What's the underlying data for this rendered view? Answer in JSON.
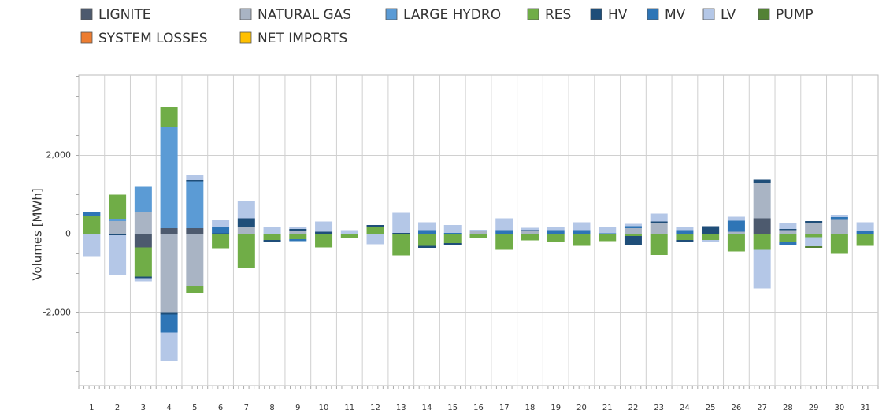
{
  "chart_data": {
    "type": "stacked_bar",
    "y_label": "Volumes [MWh]",
    "categories": [
      "1",
      "2",
      "3",
      "4",
      "5",
      "6",
      "7",
      "8",
      "9",
      "10",
      "11",
      "12",
      "13",
      "14",
      "15",
      "16",
      "17",
      "18",
      "19",
      "20",
      "21",
      "22",
      "23",
      "24",
      "25",
      "26",
      "27",
      "28",
      "29",
      "30",
      "31"
    ],
    "ylim": [
      -3850,
      4050
    ],
    "yticks": [
      {
        "value": -2000,
        "label": "-2,000"
      },
      0,
      {
        "value": 2000,
        "label": "2,000"
      }
    ],
    "grid": true,
    "legend": "top",
    "series": [
      {
        "name": "LIGNITE",
        "color": "#4d5a6e",
        "values": [
          0,
          0,
          -340,
          150,
          150,
          0,
          0,
          0,
          0,
          0,
          0,
          0,
          0,
          0,
          0,
          0,
          0,
          0,
          0,
          0,
          0,
          0,
          0,
          0,
          0,
          0,
          400,
          0,
          0,
          0,
          0
        ]
      },
      {
        "name": "NATURAL GAS",
        "color": "#a9b4c4",
        "values": [
          0,
          330,
          570,
          -2000,
          -1320,
          0,
          170,
          0,
          80,
          0,
          0,
          0,
          0,
          0,
          0,
          70,
          0,
          80,
          0,
          0,
          0,
          150,
          280,
          0,
          0,
          60,
          900,
          100,
          290,
          380,
          0
        ]
      },
      {
        "name": "LARGE HYDRO",
        "color": "#5b9bd5",
        "values": [
          0,
          60,
          630,
          2580,
          1190,
          0,
          0,
          0,
          0,
          0,
          0,
          0,
          0,
          0,
          0,
          0,
          0,
          0,
          0,
          0,
          0,
          0,
          0,
          0,
          0,
          0,
          0,
          0,
          0,
          0,
          0
        ]
      },
      {
        "name": "RES",
        "color": "#70ad47",
        "values": [
          470,
          610,
          -740,
          500,
          -180,
          -360,
          -850,
          -150,
          -130,
          -340,
          -90,
          190,
          -540,
          -300,
          -230,
          -100,
          -400,
          -160,
          -200,
          -300,
          -180,
          -50,
          -530,
          -150,
          -150,
          -440,
          -400,
          -200,
          -80,
          -500,
          -300
        ]
      },
      {
        "name": "HV",
        "color": "#1f4e79",
        "values": [
          0,
          -30,
          -40,
          -40,
          30,
          20,
          230,
          -50,
          50,
          60,
          0,
          40,
          30,
          -50,
          -40,
          0,
          0,
          20,
          0,
          0,
          0,
          -220,
          40,
          -50,
          200,
          0,
          80,
          30,
          40,
          0,
          0
        ]
      },
      {
        "name": "MV",
        "color": "#2e75b6",
        "values": [
          80,
          0,
          0,
          -460,
          0,
          160,
          0,
          0,
          -50,
          0,
          0,
          0,
          0,
          100,
          30,
          0,
          100,
          0,
          100,
          100,
          20,
          50,
          0,
          100,
          0,
          280,
          0,
          -80,
          0,
          50,
          80
        ]
      },
      {
        "name": "LV",
        "color": "#b4c7e7",
        "values": [
          -580,
          -1000,
          -80,
          -730,
          140,
          170,
          430,
          180,
          50,
          260,
          100,
          -260,
          510,
          200,
          200,
          40,
          300,
          60,
          80,
          200,
          150,
          60,
          200,
          80,
          -50,
          100,
          -980,
          150,
          -230,
          60,
          220
        ]
      },
      {
        "name": "PUMP",
        "color": "#548235",
        "values": [
          0,
          0,
          0,
          0,
          0,
          0,
          0,
          0,
          0,
          0,
          0,
          0,
          0,
          0,
          0,
          0,
          0,
          0,
          0,
          0,
          0,
          0,
          0,
          0,
          0,
          0,
          0,
          0,
          -40,
          0,
          0
        ]
      },
      {
        "name": "SYSTEM LOSSES",
        "color": "#ed7d31",
        "values": [
          0,
          0,
          0,
          0,
          0,
          0,
          0,
          0,
          0,
          0,
          0,
          0,
          0,
          0,
          0,
          0,
          0,
          0,
          0,
          0,
          0,
          0,
          0,
          0,
          0,
          0,
          0,
          0,
          0,
          0,
          0
        ]
      },
      {
        "name": "NET IMPORTS",
        "color": "#ffc000",
        "values": [
          0,
          0,
          0,
          0,
          0,
          0,
          0,
          0,
          0,
          0,
          0,
          0,
          0,
          0,
          0,
          0,
          0,
          0,
          0,
          0,
          0,
          0,
          0,
          0,
          0,
          0,
          0,
          0,
          0,
          0,
          0
        ]
      }
    ]
  }
}
